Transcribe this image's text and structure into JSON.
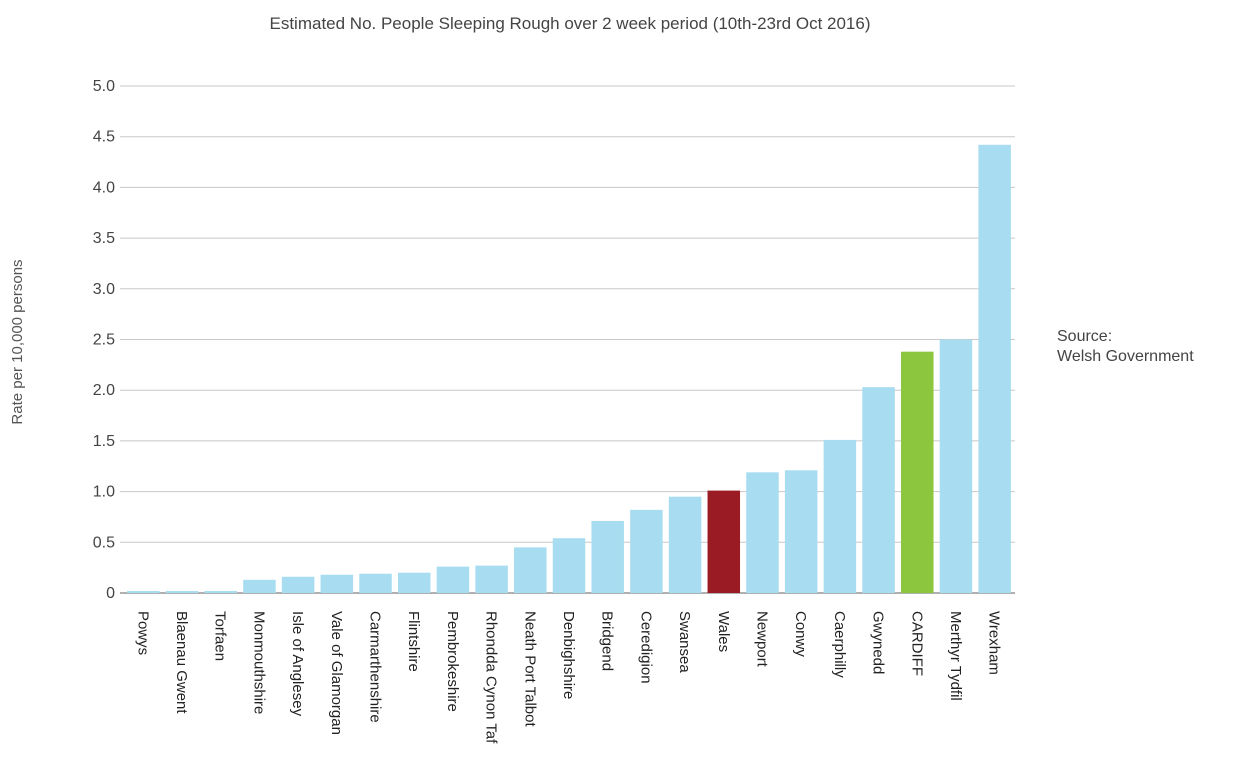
{
  "chart_data": {
    "type": "bar",
    "title": "Estimated No. People Sleeping Rough over 2 week period (10th-23rd Oct 2016)",
    "xlabel": "",
    "ylabel": "Rate per 10,000 persons",
    "ylim": [
      0,
      5.0
    ],
    "y_ticks": [
      "0",
      "0.5",
      "1.0",
      "1.5",
      "2.0",
      "2.5",
      "3.0",
      "3.5",
      "4.0",
      "4.5",
      "5.0"
    ],
    "grid": true,
    "legend": "none",
    "categories": [
      "Powys",
      "Blaenau Gwent",
      "Torfaen",
      "Monmouthshire",
      "Isle of Anglesey",
      "Vale of Glamorgan",
      "Carmarthenshire",
      "Flintshire",
      "Pembrokeshire",
      "Rhondda Cynon Taf",
      "Neath Port Talbot",
      "Denbighshire",
      "Bridgend",
      "Ceredigion",
      "Swansea",
      "Wales",
      "Newport",
      "Conwy",
      "Caerphilly",
      "Gwynedd",
      "CARDIFF",
      "Merthyr Tydfil",
      "Wrexham"
    ],
    "values": [
      0.0,
      0.0,
      0.0,
      0.13,
      0.16,
      0.18,
      0.19,
      0.2,
      0.26,
      0.27,
      0.45,
      0.54,
      0.71,
      0.82,
      0.95,
      1.01,
      1.19,
      1.21,
      1.51,
      2.03,
      2.38,
      2.5,
      4.42
    ],
    "colors": {
      "default": "#a8dcf0",
      "Wales": "#9b1b25",
      "CARDIFF": "#8cc63f",
      "grid": "#c8c8c8",
      "axis": "#b0b0b0"
    }
  },
  "source_note": {
    "line1": "Source:",
    "line2": "Welsh Government"
  }
}
